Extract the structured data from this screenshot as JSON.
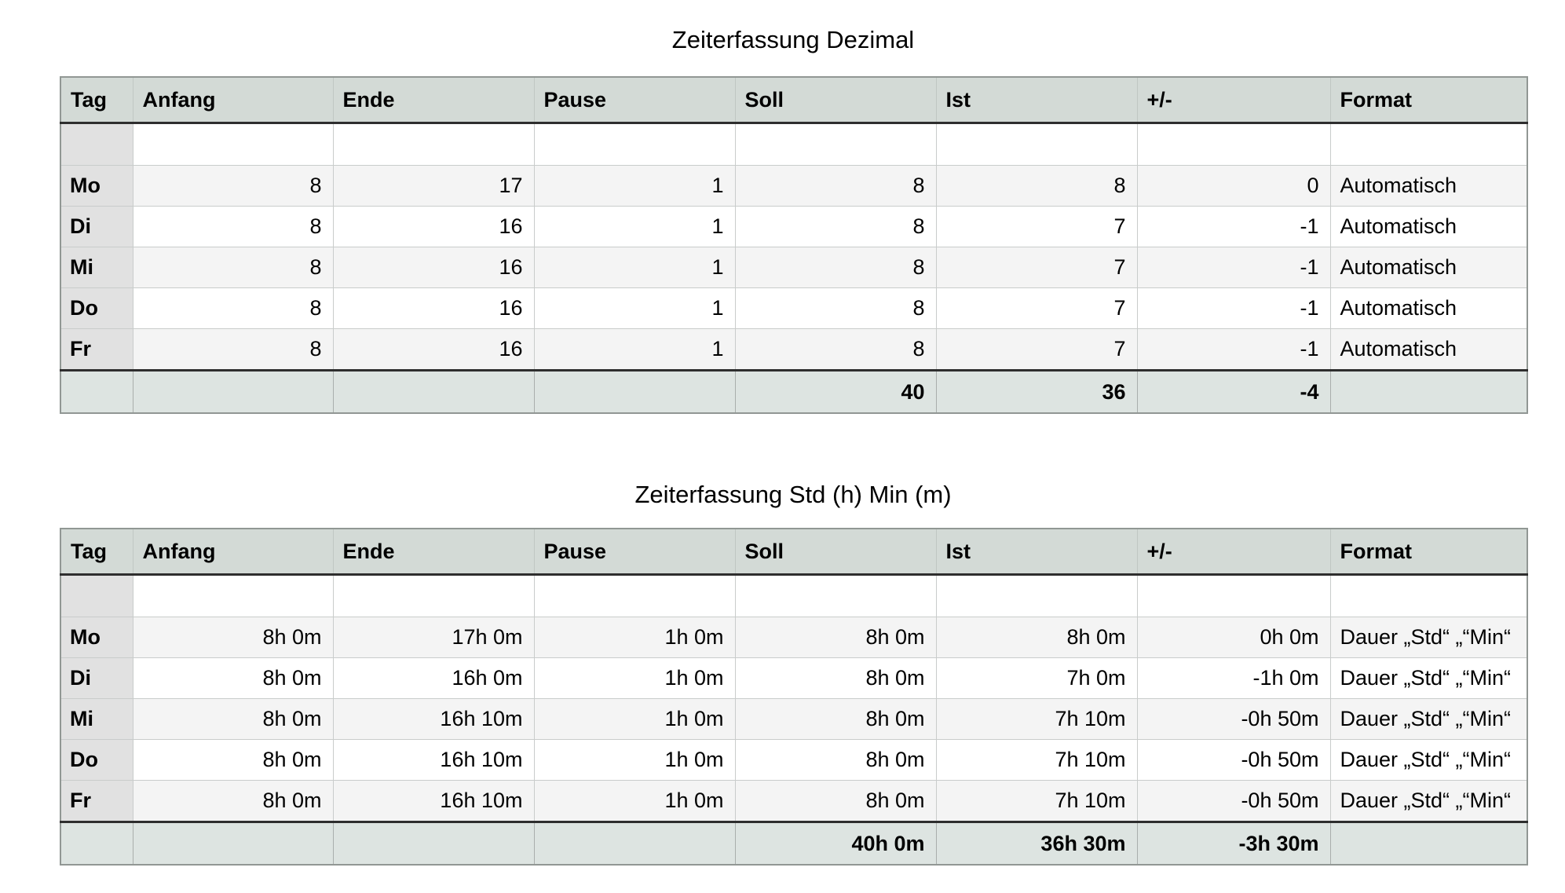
{
  "page": {
    "background": "#ffffff"
  },
  "colors": {
    "header_bg": "#d3dad6",
    "totals_bg": "#dde4e1",
    "day_column_bg": "#e1e1e1",
    "row_shaded": "#f4f4f4",
    "row_plain": "#ffffff",
    "grid_line": "#c9cccb",
    "outer_border": "#919794",
    "strong_rule": "#2e2e2e"
  },
  "tables": [
    {
      "title": "Zeiterfassung Dezimal",
      "columns": [
        "Tag",
        "Anfang",
        "Ende",
        "Pause",
        "Soll",
        "Ist",
        "+/-",
        "Format"
      ],
      "rows": [
        {
          "tag": "Mo",
          "anfang": "8",
          "ende": "17",
          "pause": "1",
          "soll": "8",
          "ist": "8",
          "diff": "0",
          "format": "Automatisch"
        },
        {
          "tag": "Di",
          "anfang": "8",
          "ende": "16",
          "pause": "1",
          "soll": "8",
          "ist": "7",
          "diff": "-1",
          "format": "Automatisch"
        },
        {
          "tag": "Mi",
          "anfang": "8",
          "ende": "16",
          "pause": "1",
          "soll": "8",
          "ist": "7",
          "diff": "-1",
          "format": "Automatisch"
        },
        {
          "tag": "Do",
          "anfang": "8",
          "ende": "16",
          "pause": "1",
          "soll": "8",
          "ist": "7",
          "diff": "-1",
          "format": "Automatisch"
        },
        {
          "tag": "Fr",
          "anfang": "8",
          "ende": "16",
          "pause": "1",
          "soll": "8",
          "ist": "7",
          "diff": "-1",
          "format": "Automatisch"
        }
      ],
      "totals": {
        "soll": "40",
        "ist": "36",
        "diff": "-4"
      }
    },
    {
      "title": "Zeiterfassung Std (h) Min (m)",
      "columns": [
        "Tag",
        "Anfang",
        "Ende",
        "Pause",
        "Soll",
        "Ist",
        "+/-",
        "Format"
      ],
      "rows": [
        {
          "tag": "Mo",
          "anfang": "8h 0m",
          "ende": "17h 0m",
          "pause": "1h 0m",
          "soll": "8h 0m",
          "ist": "8h 0m",
          "diff": "0h 0m",
          "format": "Dauer „Std“ „“Min“"
        },
        {
          "tag": "Di",
          "anfang": "8h 0m",
          "ende": "16h 0m",
          "pause": "1h 0m",
          "soll": "8h 0m",
          "ist": "7h 0m",
          "diff": "-1h 0m",
          "format": "Dauer „Std“ „“Min“"
        },
        {
          "tag": "Mi",
          "anfang": "8h 0m",
          "ende": "16h 10m",
          "pause": "1h 0m",
          "soll": "8h 0m",
          "ist": "7h 10m",
          "diff": "-0h 50m",
          "format": "Dauer „Std“ „“Min“"
        },
        {
          "tag": "Do",
          "anfang": "8h 0m",
          "ende": "16h 10m",
          "pause": "1h 0m",
          "soll": "8h 0m",
          "ist": "7h 10m",
          "diff": "-0h 50m",
          "format": "Dauer „Std“ „“Min“"
        },
        {
          "tag": "Fr",
          "anfang": "8h 0m",
          "ende": "16h 10m",
          "pause": "1h 0m",
          "soll": "8h 0m",
          "ist": "7h 10m",
          "diff": "-0h 50m",
          "format": "Dauer „Std“ „“Min“"
        }
      ],
      "totals": {
        "soll": "40h 0m",
        "ist": "36h 30m",
        "diff": "-3h 30m"
      }
    }
  ]
}
